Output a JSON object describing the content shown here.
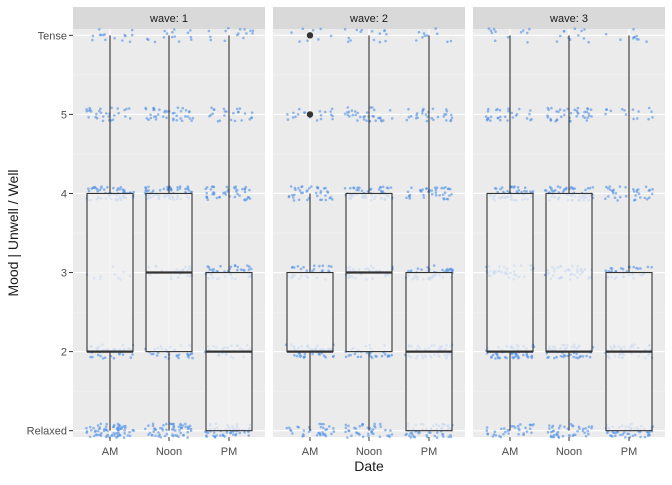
{
  "chart_data": {
    "type": "box",
    "facet_label_prefix": "wave: ",
    "facets": [
      {
        "label": "wave: 1",
        "boxes": [
          {
            "category": "AM",
            "q1": 2,
            "median": 2,
            "q3": 4,
            "whisker_low": 1,
            "whisker_high": 6,
            "outliers": []
          },
          {
            "category": "Noon",
            "q1": 2,
            "median": 3,
            "q3": 4,
            "whisker_low": 1,
            "whisker_high": 6,
            "outliers": []
          },
          {
            "category": "PM",
            "q1": 1,
            "median": 2,
            "q3": 3,
            "whisker_low": 1,
            "whisker_high": 6,
            "outliers": []
          }
        ]
      },
      {
        "label": "wave: 2",
        "boxes": [
          {
            "category": "AM",
            "q1": 2,
            "median": 2,
            "q3": 3,
            "whisker_low": 1,
            "whisker_high": 4,
            "outliers": [
              5,
              6
            ]
          },
          {
            "category": "Noon",
            "q1": 2,
            "median": 3,
            "q3": 4,
            "whisker_low": 1,
            "whisker_high": 6,
            "outliers": []
          },
          {
            "category": "PM",
            "q1": 1,
            "median": 2,
            "q3": 3,
            "whisker_low": 1,
            "whisker_high": 6,
            "outliers": []
          }
        ]
      },
      {
        "label": "wave: 3",
        "boxes": [
          {
            "category": "AM",
            "q1": 2,
            "median": 2,
            "q3": 4,
            "whisker_low": 1,
            "whisker_high": 6,
            "outliers": []
          },
          {
            "category": "Noon",
            "q1": 2,
            "median": 2,
            "q3": 4,
            "whisker_low": 1,
            "whisker_high": 6,
            "outliers": []
          },
          {
            "category": "PM",
            "q1": 1,
            "median": 2,
            "q3": 3,
            "whisker_low": 1,
            "whisker_high": 6,
            "outliers": []
          }
        ]
      }
    ],
    "categories": [
      "AM",
      "Noon",
      "PM"
    ],
    "y_levels": [
      1,
      2,
      3,
      4,
      5,
      6
    ],
    "y_tick_labels": [
      "Relaxed",
      "2",
      "3",
      "4",
      "5",
      "Tense"
    ],
    "ylim": [
      0.92,
      6.08
    ],
    "xlabel": "Date",
    "ylabel": "Mood | Unwell / Well",
    "jitter_points": {
      "shown": true,
      "description": "jittered raw responses at each mood level",
      "density": [
        [
          [
            70,
            40,
            10,
            60,
            30,
            15
          ],
          [
            60,
            35,
            25,
            70,
            40,
            15
          ],
          [
            55,
            30,
            45,
            45,
            25,
            15
          ]
        ],
        [
          [
            35,
            45,
            30,
            40,
            20,
            8
          ],
          [
            40,
            35,
            40,
            60,
            35,
            15
          ],
          [
            55,
            45,
            45,
            40,
            30,
            10
          ]
        ],
        [
          [
            35,
            60,
            35,
            55,
            30,
            12
          ],
          [
            45,
            50,
            40,
            65,
            40,
            12
          ],
          [
            55,
            45,
            35,
            35,
            15,
            10
          ]
        ]
      ]
    },
    "legend": "none",
    "grid": true,
    "colors": {
      "panel_bg": "#ebebeb",
      "grid_major": "#ffffff",
      "strip_bg": "#d9d9d9",
      "points": "#4f8fe8",
      "box_fill": "#f2f2f2",
      "box_line": "#333333",
      "text": "#4d4d4d",
      "title": "#1a1a1a"
    }
  }
}
